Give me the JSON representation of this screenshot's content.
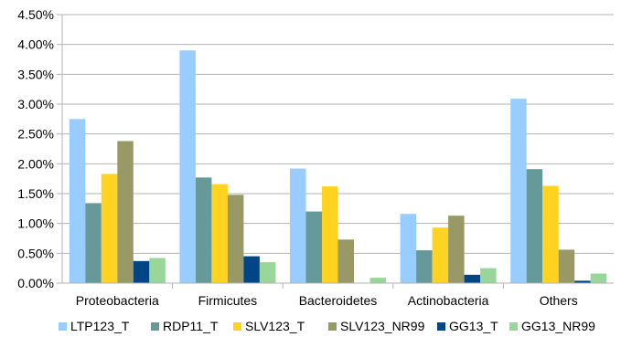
{
  "chart_data": {
    "type": "bar",
    "title": "",
    "xlabel": "",
    "ylabel": "",
    "ylim": [
      0,
      0.045
    ],
    "y_ticks": [
      "0.00%",
      "0.50%",
      "1.00%",
      "1.50%",
      "2.00%",
      "2.50%",
      "3.00%",
      "3.50%",
      "4.00%",
      "4.50%"
    ],
    "grid": true,
    "legend_position": "bottom",
    "categories": [
      "Proteobacteria",
      "Firmicutes",
      "Bacteroidetes",
      "Actinobacteria",
      "Others"
    ],
    "series": [
      {
        "name": "LTP123_T",
        "color": "#99ccff",
        "values": [
          0.0275,
          0.039,
          0.0192,
          0.0116,
          0.0309
        ]
      },
      {
        "name": "RDP11_T",
        "color": "#669999",
        "values": [
          0.0134,
          0.0177,
          0.012,
          0.0055,
          0.0191
        ]
      },
      {
        "name": "SLV123_T",
        "color": "#ffd320",
        "values": [
          0.0183,
          0.0166,
          0.0162,
          0.0093,
          0.0163
        ]
      },
      {
        "name": "SLV123_NR99",
        "color": "#999966",
        "values": [
          0.0238,
          0.0148,
          0.0073,
          0.0113,
          0.0056
        ]
      },
      {
        "name": "GG13_T",
        "color": "#004586",
        "values": [
          0.0037,
          0.0045,
          0.0,
          0.0014,
          0.0004
        ]
      },
      {
        "name": "GG13_NR99",
        "color": "#99d699",
        "values": [
          0.0042,
          0.0035,
          0.0009,
          0.0025,
          0.0016
        ]
      }
    ]
  }
}
